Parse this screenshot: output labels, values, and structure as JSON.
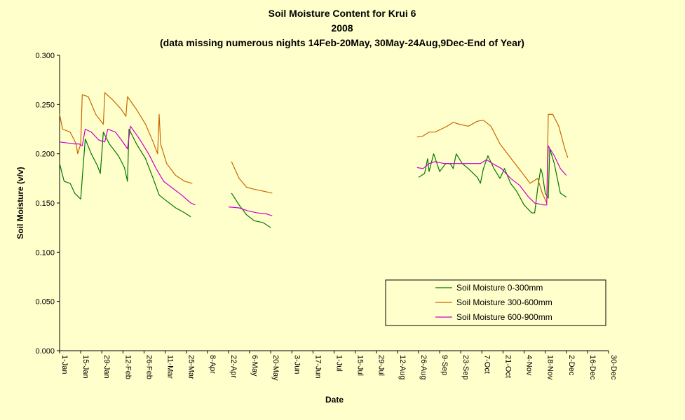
{
  "chart_data": {
    "type": "line",
    "title": "Soil Moisture Content for Krui 6",
    "subtitle": "2008",
    "note": "(data missing numerous nights 14Feb-20May, 30May-24Aug,9Dec-End of Year)",
    "xlabel": "Date",
    "ylabel": "Soil Moisture (v/v)",
    "ylim": [
      0,
      0.3
    ],
    "y_ticks": [
      "0.000",
      "0.050",
      "0.100",
      "0.150",
      "0.200",
      "0.250",
      "0.300"
    ],
    "x_ticks": [
      "1-Jan",
      "15-Jan",
      "29-Jan",
      "12-Feb",
      "26-Feb",
      "11-Mar",
      "25-Mar",
      "8-Apr",
      "22-Apr",
      "6-May",
      "20-May",
      "3-Jun",
      "17-Jun",
      "1-Jul",
      "15-Jul",
      "29-Jul",
      "12-Aug",
      "26-Aug",
      "9-Sep",
      "23-Sep",
      "7-Oct",
      "21-Oct",
      "4-Nov",
      "18-Nov",
      "2-Dec",
      "16-Dec",
      "30-Dec"
    ],
    "x_day_range": [
      1,
      365
    ],
    "legend_position": "lower-right",
    "series": [
      {
        "name": "Soil Moisture 0-300mm",
        "color": "#007700",
        "segments": [
          [
            [
              1,
              0.19
            ],
            [
              4,
              0.172
            ],
            [
              8,
              0.17
            ],
            [
              11,
              0.16
            ],
            [
              15,
              0.154
            ],
            [
              16,
              0.175
            ],
            [
              18,
              0.215
            ],
            [
              22,
              0.2
            ],
            [
              26,
              0.188
            ],
            [
              28,
              0.18
            ],
            [
              30,
              0.222
            ],
            [
              34,
              0.21
            ],
            [
              40,
              0.198
            ],
            [
              44,
              0.186
            ],
            [
              46,
              0.172
            ],
            [
              47,
              0.225
            ],
            [
              52,
              0.21
            ],
            [
              58,
              0.195
            ],
            [
              63,
              0.175
            ],
            [
              67,
              0.158
            ],
            [
              72,
              0.152
            ],
            [
              78,
              0.145
            ],
            [
              84,
              0.14
            ],
            [
              88,
              0.136
            ]
          ],
          [
            [
              115,
              0.16
            ],
            [
              120,
              0.148
            ],
            [
              125,
              0.138
            ],
            [
              130,
              0.132
            ],
            [
              136,
              0.13
            ],
            [
              141,
              0.125
            ]
          ],
          [
            [
              239,
              0.176
            ],
            [
              243,
              0.18
            ],
            [
              245,
              0.195
            ],
            [
              246,
              0.182
            ],
            [
              249,
              0.2
            ],
            [
              253,
              0.182
            ],
            [
              257,
              0.19
            ],
            [
              260,
              0.19
            ],
            [
              262,
              0.185
            ],
            [
              264,
              0.2
            ],
            [
              268,
              0.19
            ],
            [
              272,
              0.185
            ],
            [
              278,
              0.176
            ],
            [
              280,
              0.17
            ],
            [
              282,
              0.185
            ],
            [
              285,
              0.198
            ],
            [
              289,
              0.185
            ],
            [
              293,
              0.175
            ],
            [
              296,
              0.185
            ],
            [
              300,
              0.17
            ],
            [
              304,
              0.162
            ],
            [
              309,
              0.148
            ],
            [
              314,
              0.14
            ],
            [
              316,
              0.14
            ],
            [
              318,
              0.165
            ],
            [
              320,
              0.185
            ],
            [
              321,
              0.18
            ],
            [
              323,
              0.16
            ],
            [
              325,
              0.155
            ],
            [
              326,
              0.205
            ],
            [
              329,
              0.19
            ],
            [
              333,
              0.16
            ],
            [
              337,
              0.156
            ]
          ]
        ]
      },
      {
        "name": "Soil Moisture 300-600mm",
        "color": "#cc6600",
        "segments": [
          [
            [
              1,
              0.24
            ],
            [
              3,
              0.225
            ],
            [
              8,
              0.222
            ],
            [
              12,
              0.21
            ],
            [
              13,
              0.2
            ],
            [
              15,
              0.21
            ],
            [
              16,
              0.26
            ],
            [
              20,
              0.258
            ],
            [
              25,
              0.24
            ],
            [
              30,
              0.23
            ],
            [
              31,
              0.262
            ],
            [
              36,
              0.255
            ],
            [
              42,
              0.245
            ],
            [
              45,
              0.238
            ],
            [
              46,
              0.258
            ],
            [
              52,
              0.245
            ],
            [
              58,
              0.23
            ],
            [
              63,
              0.212
            ],
            [
              66,
              0.2
            ],
            [
              67,
              0.24
            ],
            [
              68,
              0.21
            ],
            [
              72,
              0.19
            ],
            [
              78,
              0.178
            ],
            [
              84,
              0.172
            ],
            [
              89,
              0.17
            ]
          ],
          [
            [
              115,
              0.192
            ],
            [
              120,
              0.175
            ],
            [
              125,
              0.166
            ],
            [
              130,
              0.164
            ],
            [
              136,
              0.162
            ],
            [
              142,
              0.16
            ]
          ],
          [
            [
              238,
              0.217
            ],
            [
              242,
              0.218
            ],
            [
              246,
              0.222
            ],
            [
              250,
              0.222
            ],
            [
              254,
              0.225
            ],
            [
              258,
              0.228
            ],
            [
              262,
              0.232
            ],
            [
              266,
              0.23
            ],
            [
              272,
              0.228
            ],
            [
              278,
              0.233
            ],
            [
              282,
              0.234
            ],
            [
              287,
              0.228
            ],
            [
              293,
              0.21
            ],
            [
              298,
              0.2
            ],
            [
              303,
              0.19
            ],
            [
              308,
              0.18
            ],
            [
              313,
              0.17
            ],
            [
              318,
              0.175
            ],
            [
              321,
              0.16
            ],
            [
              324,
              0.15
            ],
            [
              325,
              0.24
            ],
            [
              328,
              0.24
            ],
            [
              332,
              0.228
            ],
            [
              336,
              0.205
            ],
            [
              338,
              0.196
            ]
          ]
        ]
      },
      {
        "name": "Soil Moisture 600-900mm",
        "color": "#cc00cc",
        "segments": [
          [
            [
              1,
              0.212
            ],
            [
              6,
              0.211
            ],
            [
              11,
              0.21
            ],
            [
              14,
              0.21
            ],
            [
              16,
              0.208
            ],
            [
              18,
              0.225
            ],
            [
              22,
              0.222
            ],
            [
              27,
              0.214
            ],
            [
              31,
              0.212
            ],
            [
              33,
              0.225
            ],
            [
              38,
              0.222
            ],
            [
              42,
              0.214
            ],
            [
              46,
              0.205
            ],
            [
              48,
              0.228
            ],
            [
              54,
              0.215
            ],
            [
              60,
              0.2
            ],
            [
              65,
              0.185
            ],
            [
              70,
              0.172
            ],
            [
              76,
              0.165
            ],
            [
              82,
              0.158
            ],
            [
              88,
              0.15
            ],
            [
              91,
              0.148
            ]
          ],
          [
            [
              113,
              0.146
            ],
            [
              120,
              0.145
            ],
            [
              126,
              0.142
            ],
            [
              132,
              0.14
            ],
            [
              138,
              0.139
            ],
            [
              142,
              0.137
            ]
          ],
          [
            [
              238,
              0.186
            ],
            [
              242,
              0.185
            ],
            [
              246,
              0.19
            ],
            [
              250,
              0.192
            ],
            [
              256,
              0.19
            ],
            [
              262,
              0.19
            ],
            [
              268,
              0.19
            ],
            [
              274,
              0.19
            ],
            [
              280,
              0.19
            ],
            [
              284,
              0.194
            ],
            [
              288,
              0.19
            ],
            [
              294,
              0.185
            ],
            [
              300,
              0.175
            ],
            [
              306,
              0.168
            ],
            [
              312,
              0.156
            ],
            [
              316,
              0.15
            ],
            [
              322,
              0.148
            ],
            [
              324,
              0.148
            ],
            [
              325,
              0.208
            ],
            [
              329,
              0.198
            ],
            [
              333,
              0.185
            ],
            [
              337,
              0.178
            ]
          ]
        ]
      }
    ]
  }
}
